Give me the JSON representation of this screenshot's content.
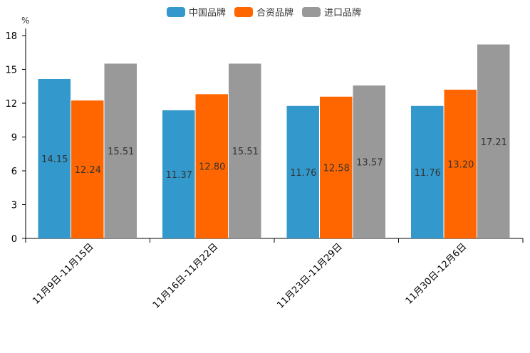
{
  "chart_data": {
    "type": "bar",
    "title": "",
    "unit": "%",
    "xlabel": "",
    "ylabel": "%",
    "ylim": [
      0,
      18
    ],
    "yticks": [
      0,
      3,
      6,
      9,
      12,
      15,
      18
    ],
    "categories": [
      "11月9日-11月15日",
      "11月16日-11月22日",
      "11月23日-11月29日",
      "11月30日-12月6日"
    ],
    "series": [
      {
        "name": "中国品牌",
        "color": "#3399cc",
        "values": [
          14.15,
          11.37,
          11.76,
          11.76
        ],
        "labels": [
          "14.15",
          "11.37",
          "11.76",
          "11.76"
        ]
      },
      {
        "name": "合资品牌",
        "color": "#ff6600",
        "values": [
          12.24,
          12.8,
          12.58,
          13.2
        ],
        "labels": [
          "12.24",
          "12.80",
          "12.58",
          "13.20"
        ]
      },
      {
        "name": "进口品牌",
        "color": "#999999",
        "values": [
          15.51,
          15.51,
          13.57,
          17.21
        ],
        "labels": [
          "15.51",
          "15.51",
          "13.57",
          "17.21"
        ]
      }
    ],
    "legend_position": "top-center",
    "grid": false
  }
}
